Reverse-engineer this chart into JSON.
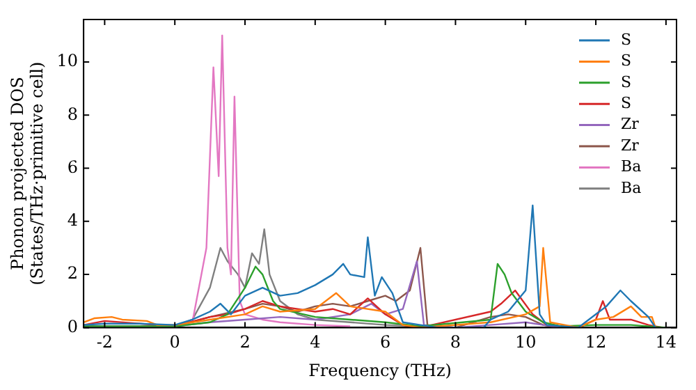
{
  "chart_data": {
    "type": "line",
    "xlabel": "Frequency (THz)",
    "ylabel": "Phonon projected DOS\n(States/THz·primitive cell)",
    "xlim": [
      -2.6,
      14.3
    ],
    "ylim": [
      0,
      11.6
    ],
    "xticks": [
      -2,
      0,
      2,
      4,
      6,
      8,
      10,
      12,
      14
    ],
    "yticks": [
      0,
      2,
      4,
      6,
      8,
      10
    ],
    "legend": "top right",
    "marker": "none",
    "line_style": "solid",
    "series": [
      {
        "name": "S",
        "color": "#1f77b4",
        "x": [
          -2.6,
          -2,
          -1,
          0,
          0.5,
          1,
          1.3,
          1.6,
          2,
          2.5,
          3,
          3.5,
          4,
          4.5,
          4.8,
          5,
          5.4,
          5.5,
          5.7,
          5.9,
          6.2,
          6.5,
          7,
          7.5,
          8.8,
          9,
          9.5,
          10,
          10.2,
          10.4,
          10.6,
          11.5,
          12,
          12.3,
          12.7,
          13,
          13.5,
          13.7
        ],
        "values": [
          0.1,
          0.15,
          0.15,
          0.1,
          0.3,
          0.6,
          0.9,
          0.5,
          1.2,
          1.5,
          1.2,
          1.3,
          1.6,
          2.0,
          2.4,
          2.0,
          1.9,
          3.4,
          1.2,
          1.9,
          1.3,
          0.2,
          0.1,
          0,
          0,
          0.3,
          0.6,
          1.4,
          4.6,
          0.5,
          0.1,
          0,
          0.5,
          0.8,
          1.4,
          1.0,
          0.4,
          0
        ]
      },
      {
        "name": "S",
        "color": "#ff7f0e",
        "x": [
          -2.6,
          -2.3,
          -1.8,
          -1.5,
          -0.8,
          -0.5,
          0,
          1,
          2,
          2.5,
          3,
          4,
          4.6,
          5,
          6,
          6.5,
          7,
          9,
          10,
          10.4,
          10.5,
          10.7,
          11.5,
          12,
          12.5,
          13,
          13.3,
          13.6,
          13.7
        ],
        "values": [
          0.2,
          0.35,
          0.4,
          0.3,
          0.25,
          0.1,
          0.1,
          0.3,
          0.5,
          0.8,
          0.6,
          0.7,
          1.3,
          0.8,
          0.6,
          0.1,
          0,
          0.2,
          0.5,
          0.8,
          3.0,
          0.2,
          0,
          0.3,
          0.4,
          0.8,
          0.4,
          0.4,
          0
        ]
      },
      {
        "name": "S",
        "color": "#2ca02c",
        "x": [
          -2.6,
          0,
          1,
          1.5,
          2,
          2.3,
          2.5,
          2.8,
          3,
          4,
          5,
          6,
          7,
          9,
          9.2,
          9.4,
          9.6,
          10,
          10.5,
          11,
          12,
          13,
          14
        ],
        "values": [
          0.05,
          0.05,
          0.2,
          0.5,
          1.5,
          2.3,
          2.0,
          1.0,
          0.7,
          0.4,
          0.3,
          0.2,
          0.05,
          0.3,
          2.4,
          2.0,
          1.3,
          0.6,
          0.2,
          0.05,
          0.1,
          0.1,
          0
        ]
      },
      {
        "name": "S",
        "color": "#d62728",
        "x": [
          -2.6,
          -2,
          -1,
          0,
          1,
          1.5,
          2,
          2.5,
          3,
          4,
          4.5,
          5,
          5.5,
          6,
          6.5,
          7,
          9,
          9.3,
          9.7,
          10.2,
          10.6,
          11.5,
          12,
          12.2,
          12.4,
          13,
          13.5,
          13.9
        ],
        "values": [
          0.1,
          0.25,
          0.15,
          0.05,
          0.4,
          0.5,
          0.7,
          1.0,
          0.8,
          0.6,
          0.7,
          0.5,
          1.1,
          0.5,
          0.1,
          0,
          0.6,
          0.9,
          1.4,
          0.5,
          0.1,
          0,
          0.3,
          1.0,
          0.3,
          0.3,
          0.1,
          0
        ]
      },
      {
        "name": "Zr",
        "color": "#9467bd",
        "x": [
          -2.6,
          0,
          1,
          2,
          3,
          4,
          5,
          5.6,
          6,
          6.5,
          6.9,
          7.1,
          8,
          9,
          10,
          10.5,
          11
        ],
        "values": [
          0.05,
          0.05,
          0.2,
          0.3,
          0.4,
          0.3,
          0.5,
          0.9,
          0.5,
          0.7,
          2.5,
          0.1,
          0,
          0.1,
          0.2,
          0.1,
          0
        ]
      },
      {
        "name": "Zr",
        "color": "#8c564b",
        "x": [
          -2.6,
          0,
          1,
          2,
          2.5,
          3,
          3.5,
          4,
          4.5,
          5,
          5.5,
          6,
          6.3,
          6.7,
          7,
          7.2,
          8,
          9,
          9.5,
          10,
          10.5,
          11
        ],
        "values": [
          0.05,
          0.05,
          0.4,
          0.7,
          0.9,
          0.8,
          0.6,
          0.8,
          0.9,
          0.8,
          1.0,
          1.2,
          1.0,
          1.4,
          3.0,
          0.1,
          0,
          0.4,
          0.5,
          0.4,
          0.1,
          0
        ]
      },
      {
        "name": "Ba",
        "color": "#e377c2",
        "x": [
          -2.6,
          0,
          0.5,
          0.9,
          1.1,
          1.25,
          1.35,
          1.5,
          1.6,
          1.7,
          1.85,
          2,
          2.5,
          3,
          4,
          5
        ],
        "values": [
          0.05,
          0.05,
          0.2,
          3.0,
          9.8,
          5.7,
          11.0,
          3.0,
          2.0,
          8.7,
          1.0,
          0.5,
          0.3,
          0.2,
          0.1,
          0.05
        ]
      },
      {
        "name": "Ba",
        "color": "#7f7f7f",
        "x": [
          -2.6,
          0,
          0.5,
          1,
          1.3,
          1.5,
          1.8,
          2,
          2.2,
          2.4,
          2.55,
          2.7,
          3,
          3.5,
          4,
          5,
          6,
          7
        ],
        "values": [
          0.05,
          0.05,
          0.3,
          1.5,
          3.0,
          2.5,
          2.0,
          1.5,
          2.8,
          2.4,
          3.7,
          2.0,
          1.0,
          0.5,
          0.3,
          0.2,
          0.1,
          0.05
        ]
      }
    ]
  }
}
